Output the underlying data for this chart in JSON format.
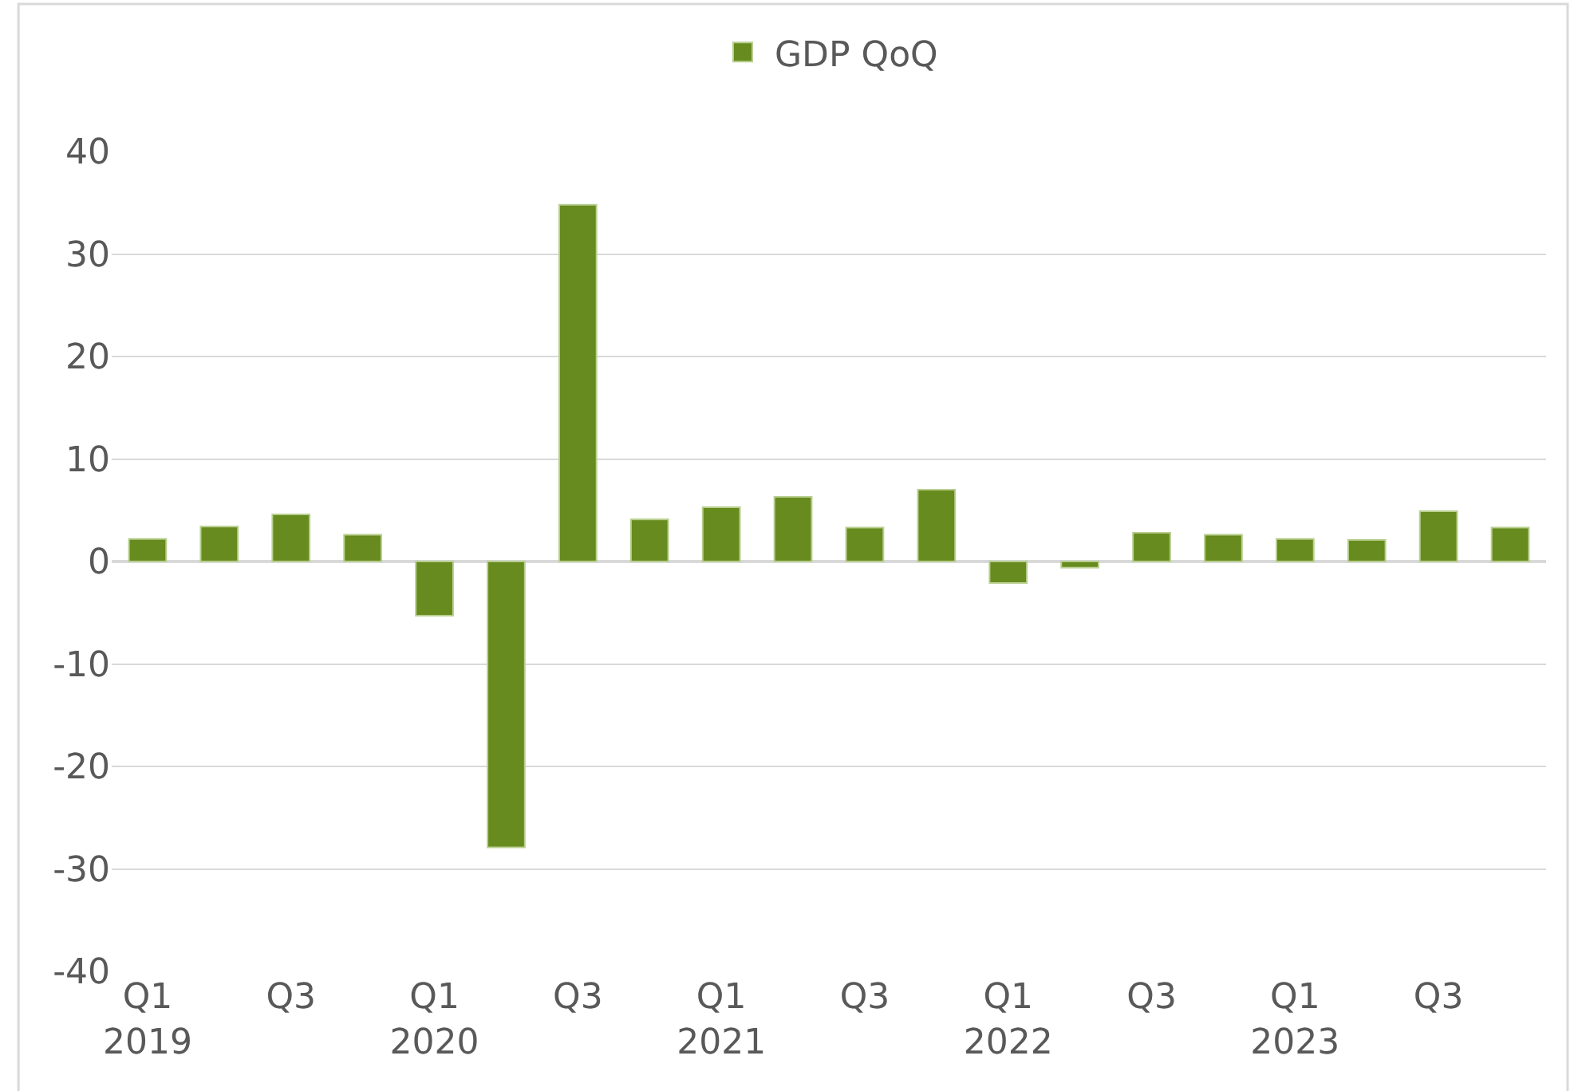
{
  "chart_data": {
    "type": "bar",
    "categories": [
      "Q1\n2019",
      null,
      "Q3",
      null,
      "Q1\n2020",
      null,
      "Q3",
      null,
      "Q1\n2021",
      null,
      "Q3",
      null,
      "Q1\n2022",
      null,
      "Q3",
      null,
      "Q1\n2023",
      null,
      "Q3",
      null
    ],
    "series": [
      {
        "name": "GDP QoQ",
        "color": "#678b1e",
        "values": [
          2.2,
          3.4,
          4.6,
          2.6,
          -5.3,
          -27.9,
          34.8,
          4.1,
          5.3,
          6.3,
          3.3,
          7.0,
          -2.1,
          -0.6,
          2.8,
          2.6,
          2.2,
          2.1,
          4.9,
          3.3
        ]
      }
    ],
    "ylim": [
      -40,
      40
    ],
    "yticks": [
      -40,
      -30,
      -20,
      -10,
      0,
      10,
      20,
      30,
      40
    ],
    "grid": "y",
    "legend": "top"
  }
}
